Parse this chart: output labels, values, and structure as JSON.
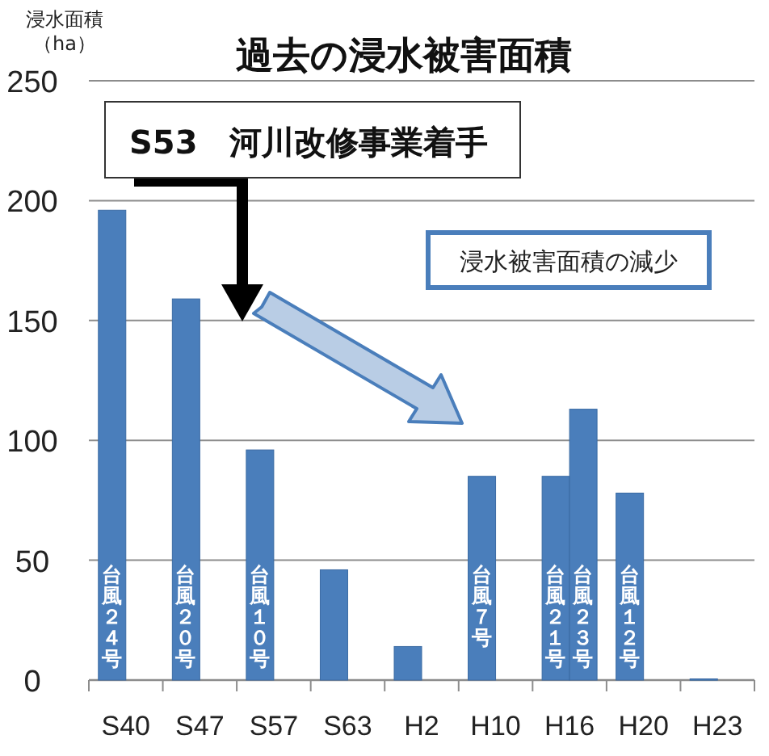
{
  "chart_data": {
    "type": "bar",
    "title": "過去の浸水被害面積",
    "ylabel": "浸水面積（ha）",
    "categories": [
      "S40",
      "S47",
      "S57",
      "S63",
      "H2",
      "H10",
      "H16",
      "H20",
      "H23"
    ],
    "series": [
      {
        "color": "#4a7ebb",
        "values": [
          196,
          159,
          96,
          46,
          14,
          85,
          85,
          78,
          0.5
        ]
      },
      {
        "color": "#4a7ebb",
        "values": [
          null,
          null,
          null,
          null,
          null,
          null,
          113,
          null,
          null
        ]
      }
    ],
    "ylim": [
      0,
      250
    ],
    "yticks": [
      0,
      50,
      100,
      150,
      200,
      250
    ],
    "grid": "y",
    "annotations": [
      "S53　河川改修事業着手",
      "浸水被害面積の減少",
      {
        "text": "台風２４号",
        "x": "S40",
        "y": 50
      },
      {
        "text": "台風２０号",
        "x": "S47",
        "y": 50
      },
      {
        "text": "台風１０号",
        "x": "S57",
        "y": 50
      },
      {
        "text": "台風７号",
        "x": "H10",
        "y": 50
      },
      {
        "text": "台風２１号",
        "x": "H16",
        "y": 50
      },
      {
        "text": "台風２３号",
        "x": "H16",
        "y": 50
      },
      {
        "text": "台風１２号",
        "x": "H20",
        "y": 50
      }
    ]
  }
}
